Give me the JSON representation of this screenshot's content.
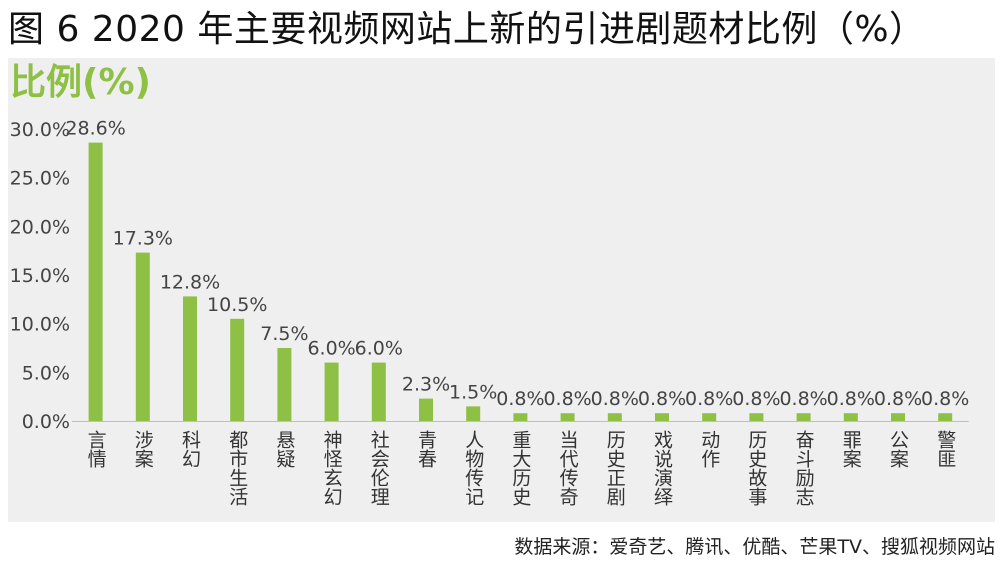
{
  "title": "图 6 2020 年主要视频网站上新的引进剧题材比例（%）",
  "source": "数据来源：爱奇艺、腾讯、优酷、芒果TV、搜狐视频网站",
  "chart_data": {
    "type": "bar",
    "ylabel": "比例(%)",
    "categories": [
      "言情",
      "涉案",
      "科幻",
      "都市生活",
      "悬疑",
      "神怪玄幻",
      "社会伦理",
      "青春",
      "人物传记",
      "重大历史",
      "当代传奇",
      "历史正剧",
      "戏说演绎",
      "动作",
      "历史故事",
      "奋斗励志",
      "罪案",
      "公案",
      "警匪"
    ],
    "values": [
      28.6,
      17.3,
      12.8,
      10.5,
      7.5,
      6.0,
      6.0,
      2.3,
      1.5,
      0.8,
      0.8,
      0.8,
      0.8,
      0.8,
      0.8,
      0.8,
      0.8,
      0.8,
      0.8
    ],
    "data_labels": [
      "28.6%",
      "17.3%",
      "12.8%",
      "10.5%",
      "7.5%",
      "6.0%",
      "6.0%",
      "2.3%",
      "1.5%",
      "0.8%",
      "0.8%",
      "0.8%",
      "0.8%",
      "0.8%",
      "0.8%",
      "0.8%",
      "0.8%",
      "0.8%",
      "0.8%"
    ],
    "yticks": [
      0,
      5,
      10,
      15,
      20,
      25,
      30
    ],
    "ytick_labels": [
      "0.0%",
      "5.0%",
      "10.0%",
      "15.0%",
      "20.0%",
      "25.0%",
      "30.0%"
    ],
    "ylim": [
      0,
      30
    ],
    "grid": false,
    "bar_color": "#8dc044"
  }
}
